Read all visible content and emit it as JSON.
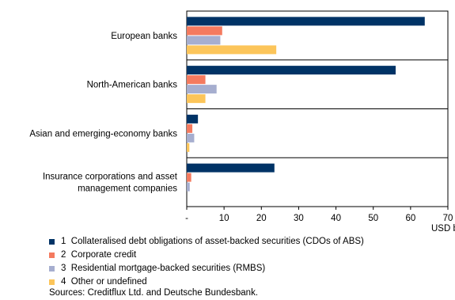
{
  "chart_data": {
    "type": "bar",
    "orientation": "horizontal",
    "categories": [
      [
        "European banks"
      ],
      [
        "North-American banks"
      ],
      [
        "Asian and emerging-economy banks"
      ],
      [
        "Insurance corporations and asset",
        "management companies"
      ]
    ],
    "series": [
      {
        "name": "1  Collateralised debt obligations of asset-backed securities (CDOs of ABS)",
        "color": "#003366",
        "values": [
          63.8,
          56,
          3,
          23.5
        ]
      },
      {
        "name": "2  Corporate credit",
        "color": "#f47a5f",
        "values": [
          9.5,
          5,
          1.5,
          1.2
        ]
      },
      {
        "name": "3  Residential mortgage-backed securities (RMBS)",
        "color": "#a6aecf",
        "values": [
          9,
          8,
          2,
          0.8
        ]
      },
      {
        "name": "4  Other or undefined",
        "color": "#fcc55a",
        "values": [
          24,
          5,
          0.7,
          0
        ]
      }
    ],
    "xlim": [
      0,
      70
    ],
    "tick_labels": [
      "-",
      "10",
      "20",
      "30",
      "40",
      "50",
      "60",
      "70"
    ],
    "xlabel": "USD bn",
    "source": "Sources: Creditflux Ltd. and Deutsche Bundesbank."
  }
}
